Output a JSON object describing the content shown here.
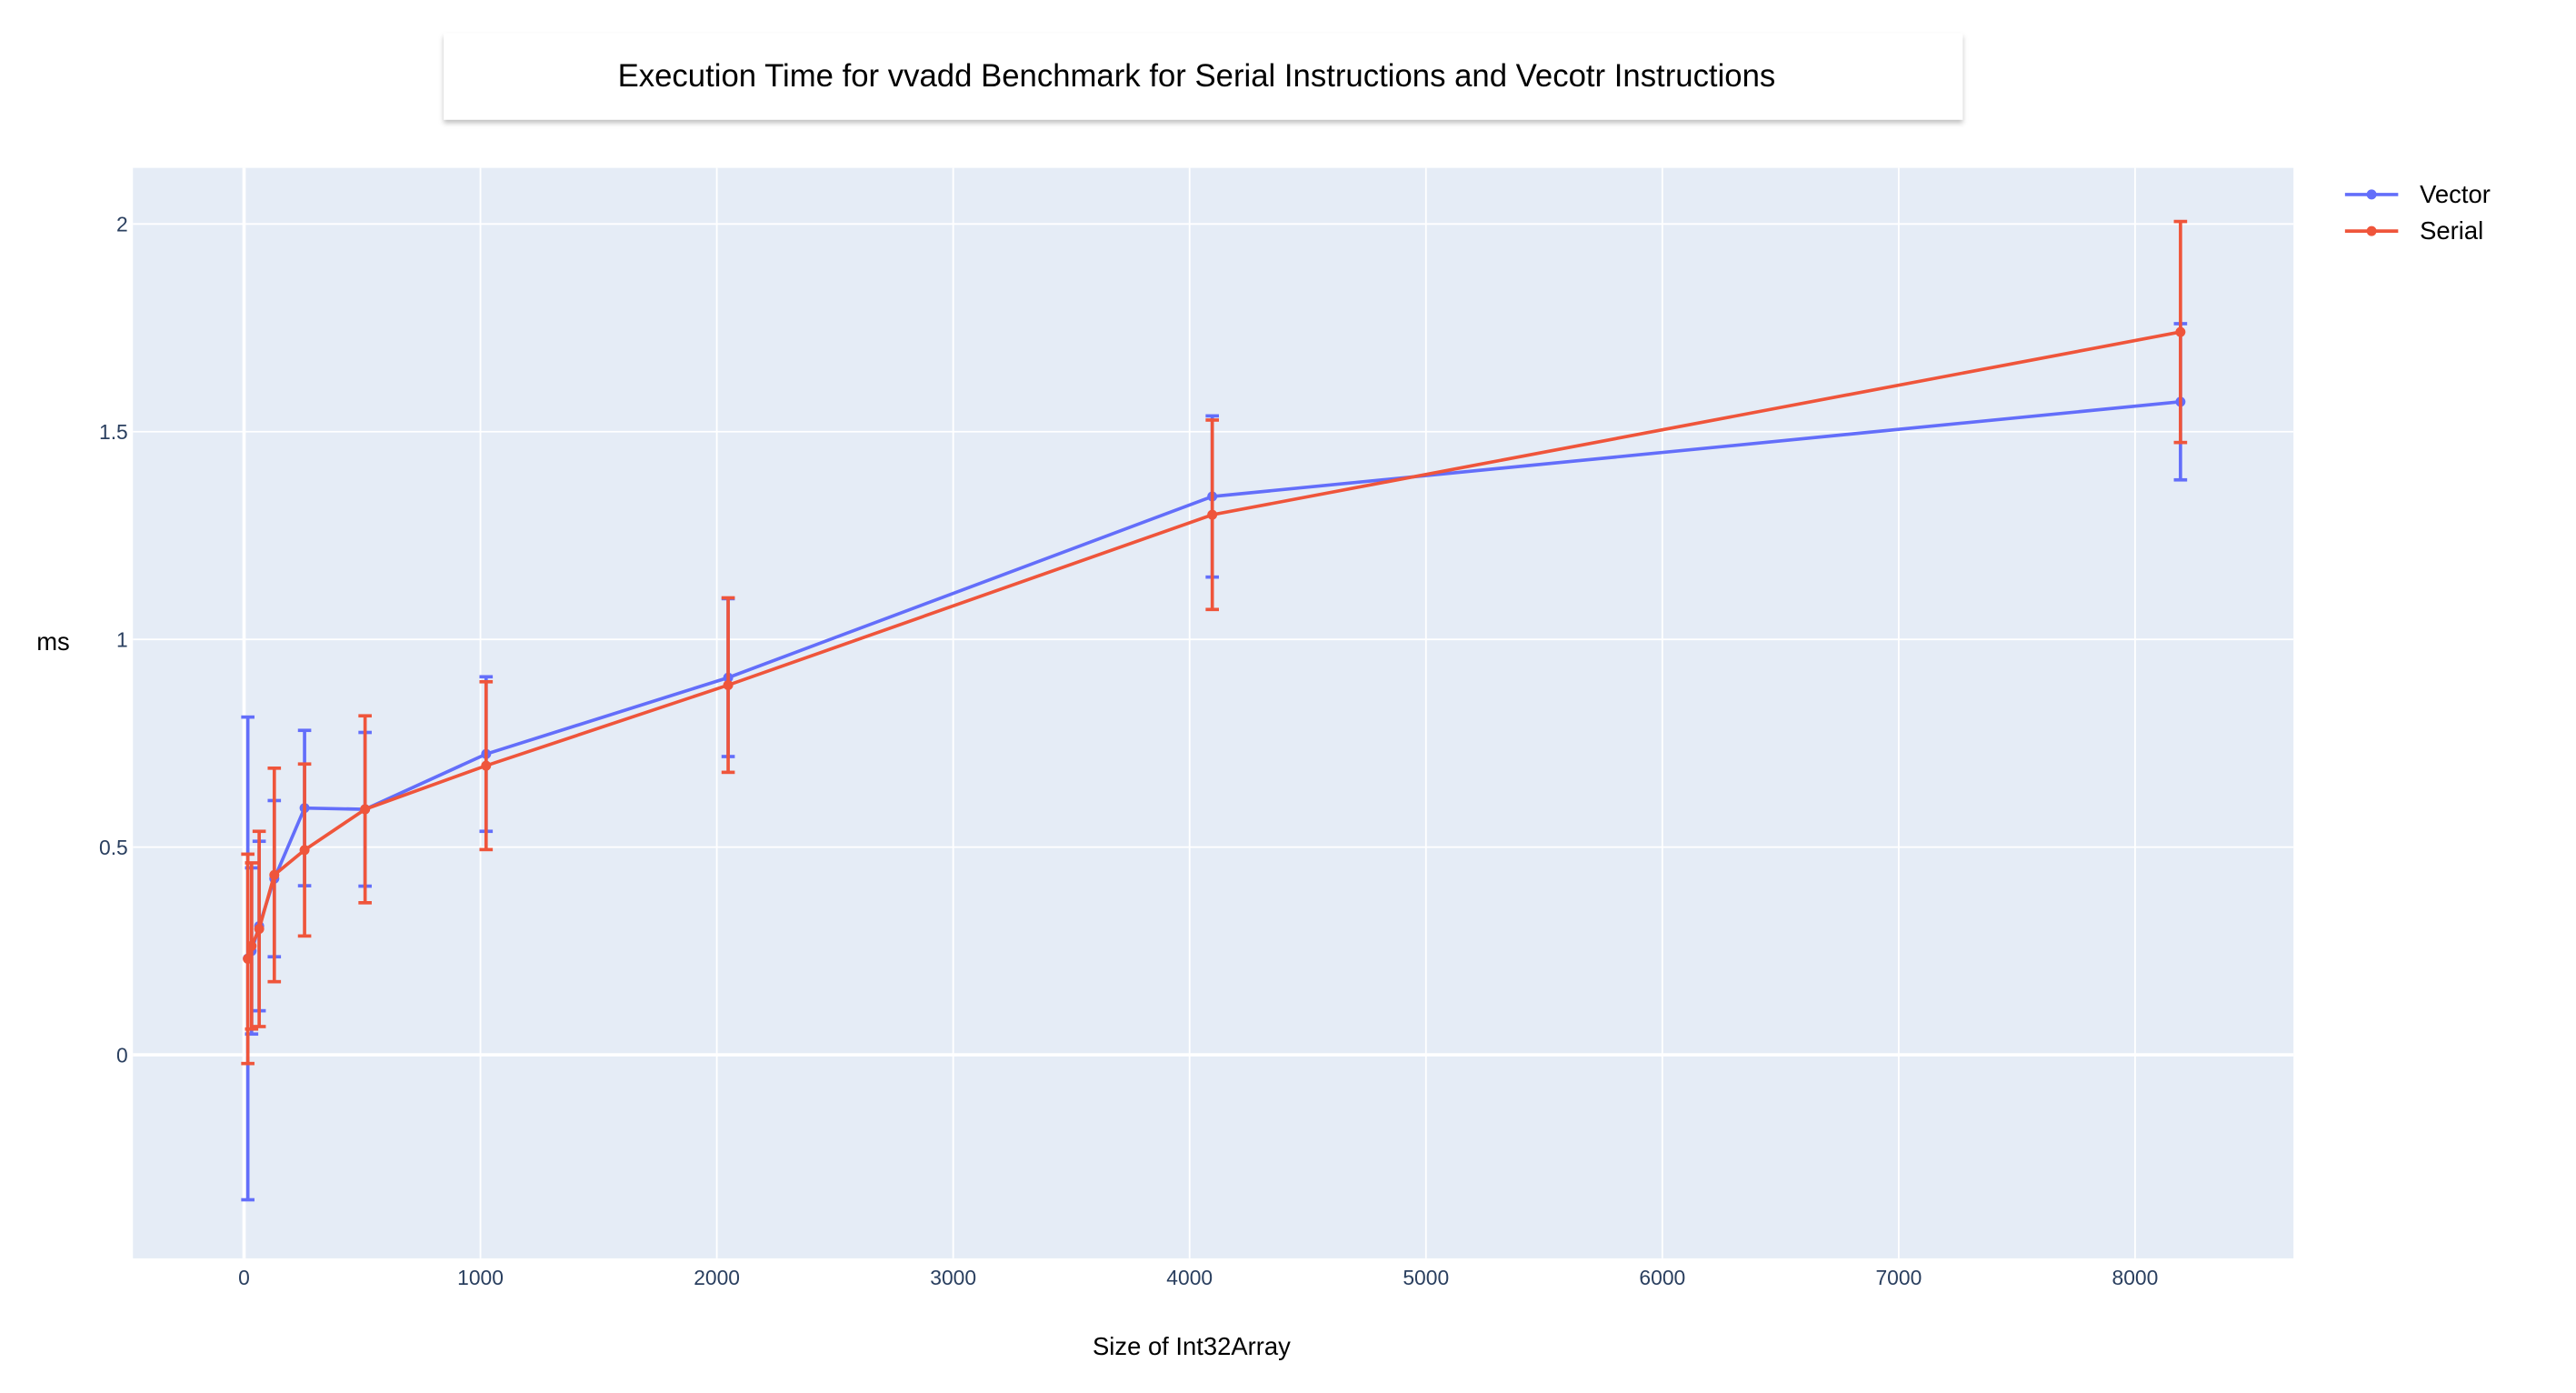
{
  "chart_data": {
    "type": "line",
    "title": "Execution Time for vvadd Benchmark for Serial Instructions and Vecotr Instructions",
    "xlabel": "Size of Int32Array",
    "ylabel": "ms",
    "xlim": [
      -470,
      8670
    ],
    "ylim": [
      -0.49,
      2.135
    ],
    "xticks": [
      0,
      1000,
      2000,
      3000,
      4000,
      5000,
      6000,
      7000,
      8000
    ],
    "xtick_labels": [
      "0",
      "1000",
      "2000",
      "3000",
      "4000",
      "5000",
      "6000",
      "7000",
      "8000"
    ],
    "yticks": [
      0,
      0.5,
      1,
      1.5,
      2
    ],
    "ytick_labels": [
      "0",
      "0.5",
      "1",
      "1.5",
      "2"
    ],
    "grid": true,
    "legend_position": "top-right",
    "x": [
      16,
      32,
      64,
      128,
      256,
      512,
      1024,
      2048,
      4096,
      8192
    ],
    "series": [
      {
        "name": "Vector",
        "color": "#636efa",
        "values": [
          0.232,
          0.25,
          0.31,
          0.424,
          0.594,
          0.591,
          0.724,
          0.908,
          1.344,
          1.572
        ],
        "error": [
          0.581,
          0.2,
          0.204,
          0.188,
          0.187,
          0.185,
          0.186,
          0.19,
          0.194,
          0.188
        ]
      },
      {
        "name": "Serial",
        "color": "#ef553b",
        "values": [
          0.231,
          0.262,
          0.303,
          0.433,
          0.493,
          0.591,
          0.696,
          0.89,
          1.3,
          1.74
        ],
        "error": [
          0.252,
          0.2,
          0.235,
          0.257,
          0.207,
          0.225,
          0.202,
          0.21,
          0.228,
          0.266
        ]
      }
    ]
  }
}
